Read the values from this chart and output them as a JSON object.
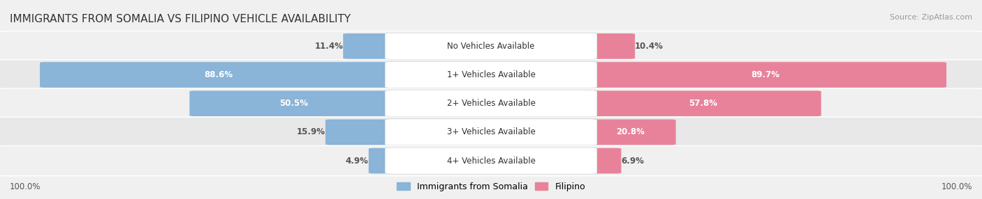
{
  "title": "IMMIGRANTS FROM SOMALIA VS FILIPINO VEHICLE AVAILABILITY",
  "source": "Source: ZipAtlas.com",
  "categories": [
    "No Vehicles Available",
    "1+ Vehicles Available",
    "2+ Vehicles Available",
    "3+ Vehicles Available",
    "4+ Vehicles Available"
  ],
  "somalia_values": [
    11.4,
    88.6,
    50.5,
    15.9,
    4.9
  ],
  "filipino_values": [
    10.4,
    89.7,
    57.8,
    20.8,
    6.9
  ],
  "somalia_color": "#8ab4d8",
  "filipino_color": "#e8829a",
  "row_colors": [
    "#f0f0f0",
    "#e8e8e8",
    "#f0f0f0",
    "#e8e8e8",
    "#f0f0f0"
  ],
  "max_value": 100.0,
  "figsize": [
    14.06,
    2.86
  ],
  "dpi": 100,
  "bg_color": "#f0f0f0"
}
